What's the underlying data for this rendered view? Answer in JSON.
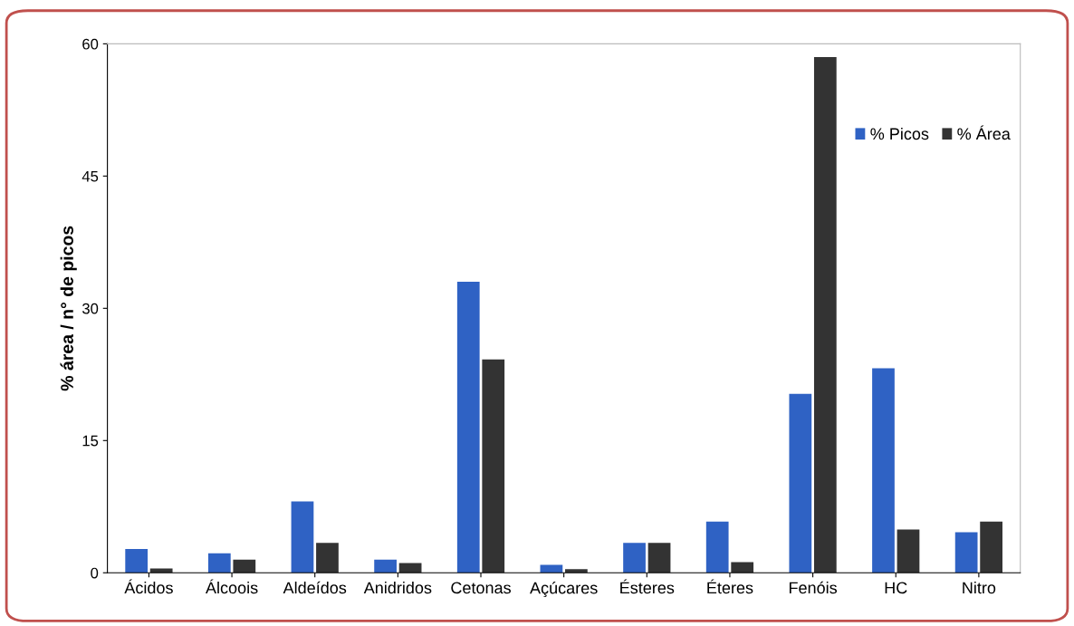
{
  "chart_data": {
    "type": "bar",
    "ylabel": "% área / n° de picos",
    "categories": [
      "Ácidos",
      "Álcoois",
      "Aldeídos",
      "Anidridos",
      "Cetonas",
      "Açúcares",
      "Ésteres",
      "Éteres",
      "Fenóis",
      "HC",
      "Nitro"
    ],
    "series": [
      {
        "name": "% Picos",
        "color": "#2f62c4",
        "values": [
          2.7,
          2.2,
          8.1,
          1.5,
          33.0,
          0.9,
          3.4,
          5.8,
          20.3,
          23.2,
          4.6
        ]
      },
      {
        "name": "% Área",
        "color": "#333333",
        "values": [
          0.5,
          1.5,
          3.4,
          1.1,
          24.2,
          0.4,
          3.4,
          1.2,
          58.5,
          4.9,
          5.8
        ]
      }
    ],
    "ylim": [
      0,
      60
    ],
    "yticks": [
      0,
      15,
      30,
      45,
      60
    ],
    "grid": false,
    "legend": "top right"
  }
}
